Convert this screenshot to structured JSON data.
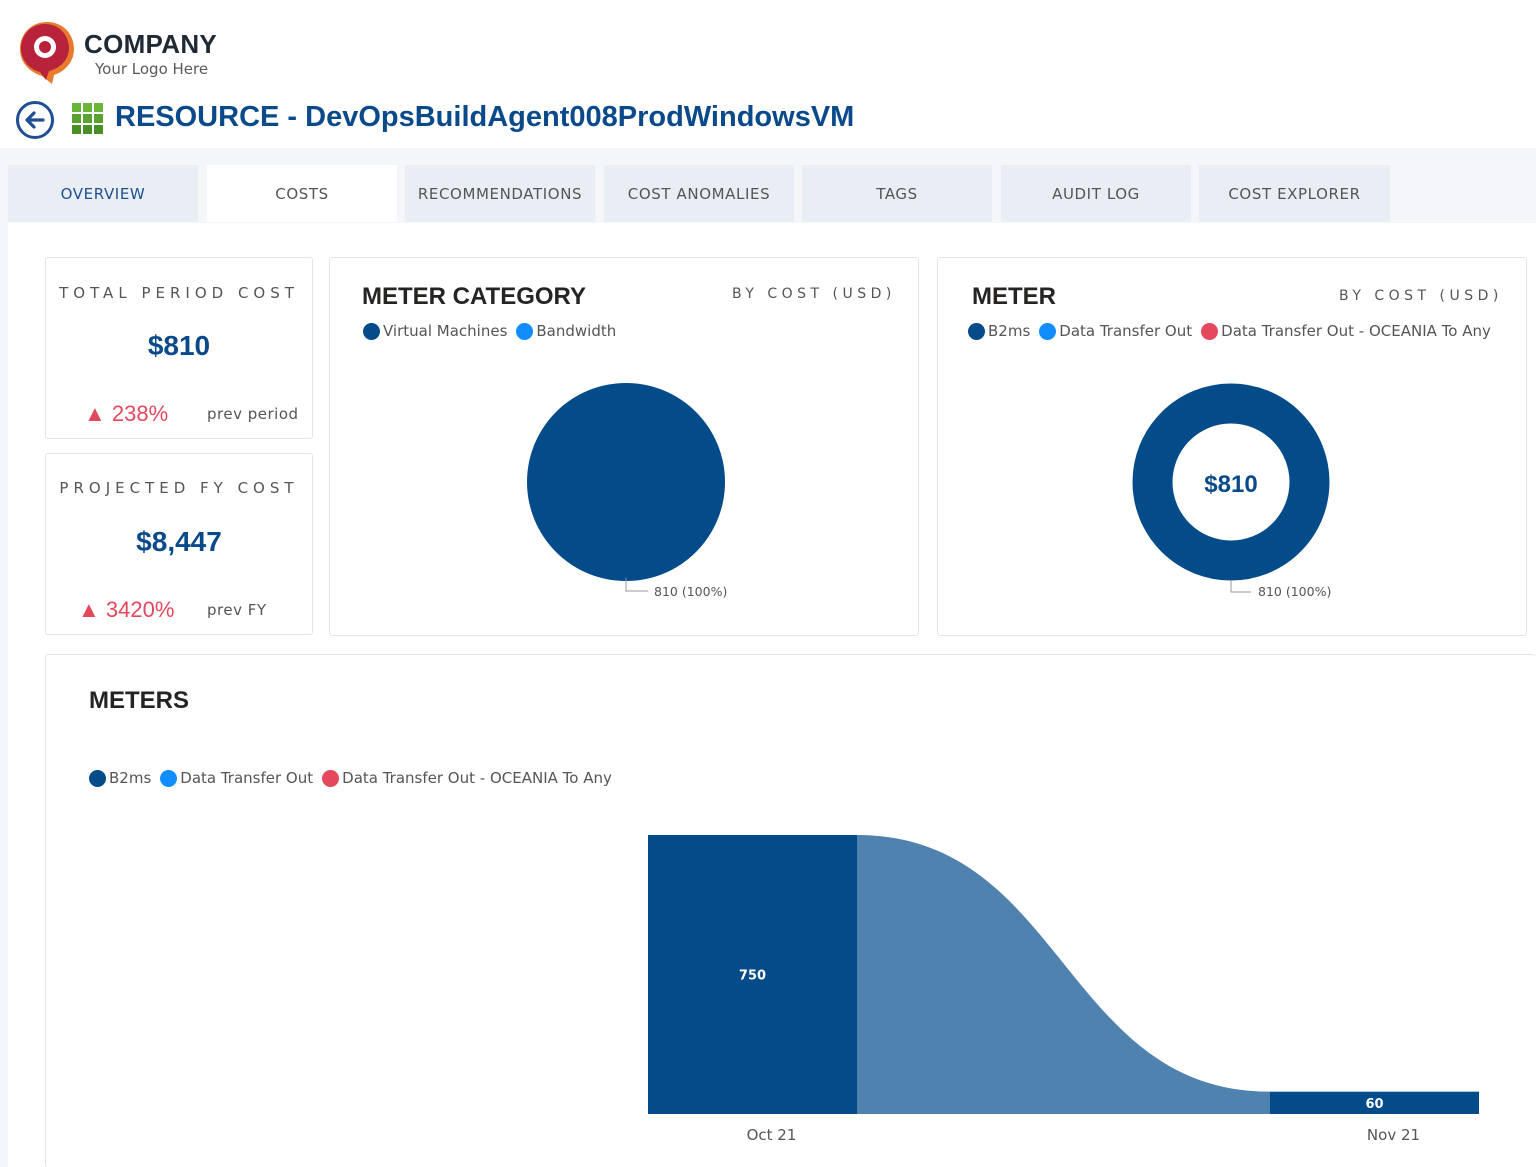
{
  "logo": {
    "company": "COMPANY",
    "tagline": "Your Logo Here"
  },
  "header": {
    "title": "RESOURCE - DevOpsBuildAgent008ProdWindowsVM",
    "back_icon": "back-arrow-icon",
    "grid_icon": "resource-grid-icon"
  },
  "tabs": [
    {
      "label": "OVERVIEW"
    },
    {
      "label": "COSTS",
      "active": true
    },
    {
      "label": "RECOMMENDATIONS"
    },
    {
      "label": "COST ANOMALIES"
    },
    {
      "label": "TAGS"
    },
    {
      "label": "AUDIT LOG"
    },
    {
      "label": "COST EXPLORER"
    }
  ],
  "kpis": {
    "total": {
      "label": "TOTAL PERIOD COST",
      "value": "$810",
      "delta": "▲ 238%",
      "prev": "prev period"
    },
    "projected": {
      "label": "PROJECTED FY COST",
      "value": "$8,447",
      "delta": "▲ 3420%",
      "prev": "prev FY"
    }
  },
  "colors": {
    "dark_blue": "#044b8a",
    "bright_blue": "#118dff",
    "red": "#e5485c",
    "ribbon": "#4f82ae"
  },
  "meter_category": {
    "title": "METER CATEGORY",
    "subtitle": "BY COST (USD)",
    "legend": [
      "Virtual Machines",
      "Bandwidth"
    ],
    "data_label": "810 (100%)"
  },
  "meter": {
    "title": "METER",
    "subtitle": "BY COST (USD)",
    "legend": [
      "B2ms",
      "Data Transfer Out",
      "Data Transfer Out - OCEANIA To Any"
    ],
    "center": "$810",
    "data_label": "810 (100%)"
  },
  "meters": {
    "title": "METERS",
    "legend": [
      "B2ms",
      "Data Transfer Out",
      "Data Transfer Out - OCEANIA To Any"
    ],
    "x_labels": [
      "Oct 21",
      "Nov 21"
    ]
  },
  "chart_data": [
    {
      "type": "pie",
      "title": "METER CATEGORY",
      "subtitle": "BY COST (USD)",
      "categories": [
        "Virtual Machines",
        "Bandwidth"
      ],
      "values": [
        810,
        0
      ],
      "data_labels": [
        "810 (100%)"
      ]
    },
    {
      "type": "pie",
      "title": "METER",
      "subtitle": "BY COST (USD)",
      "variant": "donut",
      "categories": [
        "B2ms",
        "Data Transfer Out",
        "Data Transfer Out - OCEANIA To Any"
      ],
      "values": [
        810,
        0,
        0
      ],
      "center_label": "$810",
      "data_labels": [
        "810 (100%)"
      ]
    },
    {
      "type": "bar",
      "title": "METERS",
      "variant": "stacked ribbon",
      "categories": [
        "Oct 21",
        "Nov 21"
      ],
      "series": [
        {
          "name": "B2ms",
          "values": [
            750,
            60
          ]
        },
        {
          "name": "Data Transfer Out",
          "values": [
            0,
            0
          ]
        },
        {
          "name": "Data Transfer Out - OCEANIA To Any",
          "values": [
            0,
            0
          ]
        }
      ],
      "data_labels": [
        "750",
        "60"
      ],
      "ylim": [
        0,
        750
      ]
    }
  ]
}
